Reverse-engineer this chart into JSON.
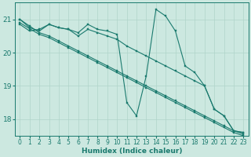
{
  "xlabel": "Humidex (Indice chaleur)",
  "bg_color": "#cce8e0",
  "grid_color": "#b0d4ca",
  "line_color": "#1a7a6e",
  "xlim": [
    -0.5,
    23.5
  ],
  "ylim": [
    17.5,
    21.5
  ],
  "yticks": [
    18,
    19,
    20,
    21
  ],
  "xticks": [
    0,
    1,
    2,
    3,
    4,
    5,
    6,
    7,
    8,
    9,
    10,
    11,
    12,
    13,
    14,
    15,
    16,
    17,
    18,
    19,
    20,
    21,
    22,
    23
  ],
  "series": [
    {
      "x": [
        0,
        1,
        2,
        3,
        4,
        5,
        6,
        7,
        8,
        9,
        10,
        11,
        12,
        13,
        14,
        15,
        16,
        17,
        18,
        19,
        20,
        21,
        22,
        23
      ],
      "y": [
        21.0,
        20.75,
        20.65,
        20.85,
        20.75,
        20.7,
        20.6,
        20.85,
        20.7,
        20.65,
        20.55,
        18.5,
        18.1,
        19.3,
        21.3,
        21.1,
        20.65,
        19.6,
        19.4,
        19.0,
        18.3,
        18.1,
        17.65,
        17.6
      ]
    },
    {
      "x": [
        0,
        1,
        2,
        3,
        4,
        5,
        6,
        7,
        8,
        9,
        10,
        11,
        12,
        13,
        14,
        15,
        16,
        17,
        18,
        19,
        20,
        21,
        22,
        23
      ],
      "y": [
        21.0,
        20.8,
        20.6,
        20.5,
        20.35,
        20.2,
        20.05,
        19.9,
        19.75,
        19.6,
        19.45,
        19.3,
        19.15,
        19.0,
        18.85,
        18.7,
        18.55,
        18.4,
        18.25,
        18.1,
        17.95,
        17.8,
        17.65,
        17.55
      ]
    },
    {
      "x": [
        0,
        1,
        2,
        3,
        4,
        5,
        6,
        7,
        8,
        9,
        10,
        11,
        12,
        13,
        14,
        15,
        16,
        17,
        18,
        19,
        20,
        21,
        22,
        23
      ],
      "y": [
        20.9,
        20.72,
        20.55,
        20.45,
        20.3,
        20.15,
        20.0,
        19.85,
        19.7,
        19.55,
        19.4,
        19.25,
        19.1,
        18.95,
        18.8,
        18.65,
        18.5,
        18.35,
        18.2,
        18.05,
        17.9,
        17.75,
        17.6,
        17.5
      ]
    },
    {
      "x": [
        0,
        1,
        2,
        3,
        4,
        5,
        6,
        7,
        8,
        9,
        10,
        11,
        12,
        13,
        14,
        15,
        16,
        17,
        18,
        19,
        20,
        21,
        22,
        23
      ],
      "y": [
        20.85,
        20.65,
        20.7,
        20.85,
        20.75,
        20.7,
        20.5,
        20.7,
        20.6,
        20.5,
        20.4,
        20.2,
        20.05,
        19.9,
        19.75,
        19.6,
        19.45,
        19.3,
        19.15,
        19.0,
        18.3,
        18.1,
        17.65,
        17.6
      ]
    }
  ]
}
